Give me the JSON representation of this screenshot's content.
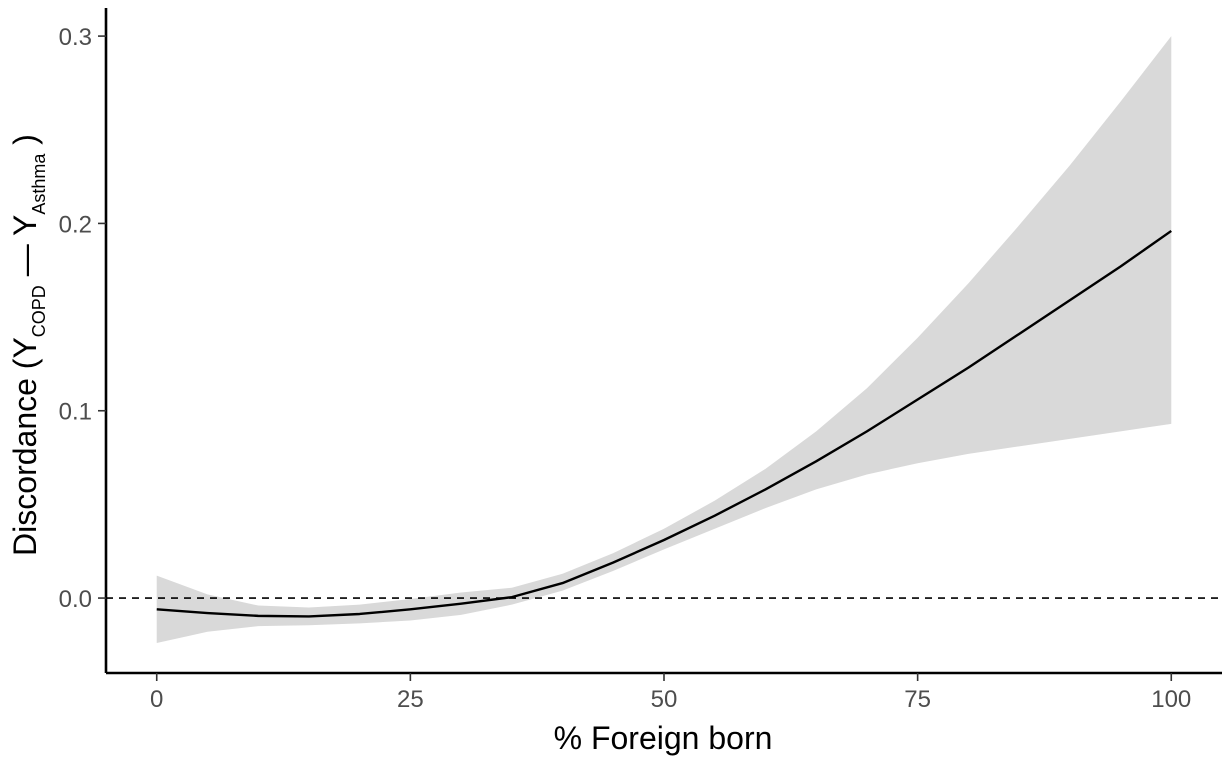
{
  "chart_data": {
    "type": "line",
    "title": "",
    "xlabel": "% Foreign born",
    "ylabel": {
      "prefix": "Discordance (",
      "y1": "Y",
      "sub1": "COPD",
      "dash": " — ",
      "y2": "Y",
      "sub2": "Asthma",
      "suffix": " )"
    },
    "xlim": [
      -5,
      105
    ],
    "ylim": [
      -0.04,
      0.315
    ],
    "x_ticks": [
      0,
      25,
      50,
      75,
      100
    ],
    "x_tick_labels": [
      "0",
      "25",
      "50",
      "75",
      "100"
    ],
    "y_ticks": [
      0.0,
      0.1,
      0.2,
      0.3
    ],
    "y_tick_labels": [
      "0.0",
      "0.1",
      "0.2",
      "0.3"
    ],
    "reference_line": {
      "y": 0,
      "style": "dashed"
    },
    "grid": false,
    "series": [
      {
        "x": [
          0,
          5,
          10,
          15,
          20,
          25,
          30,
          35,
          40,
          45,
          50,
          55,
          60,
          65,
          70,
          75,
          80,
          85,
          90,
          95,
          100
        ],
        "y": [
          -0.006,
          -0.008,
          -0.0095,
          -0.0098,
          -0.0085,
          -0.006,
          -0.003,
          0.0005,
          0.008,
          0.019,
          0.031,
          0.044,
          0.058,
          0.073,
          0.089,
          0.106,
          0.123,
          0.141,
          0.159,
          0.177,
          0.196
        ],
        "ci_lower": [
          -0.024,
          -0.018,
          -0.015,
          -0.0145,
          -0.0135,
          -0.012,
          -0.009,
          -0.0035,
          0.004,
          0.0145,
          0.026,
          0.037,
          0.048,
          0.058,
          0.066,
          0.072,
          0.077,
          0.081,
          0.085,
          0.089,
          0.093
        ],
        "ci_upper": [
          0.012,
          0.002,
          -0.004,
          -0.005,
          -0.0035,
          -0.0005,
          0.003,
          0.0055,
          0.013,
          0.024,
          0.037,
          0.052,
          0.069,
          0.089,
          0.112,
          0.139,
          0.168,
          0.199,
          0.231,
          0.265,
          0.3
        ]
      }
    ],
    "colors": {
      "line": "#000000",
      "ribbon": "#d9d9d9",
      "axis": "#000000",
      "tick_label": "#4d4d4d"
    }
  }
}
